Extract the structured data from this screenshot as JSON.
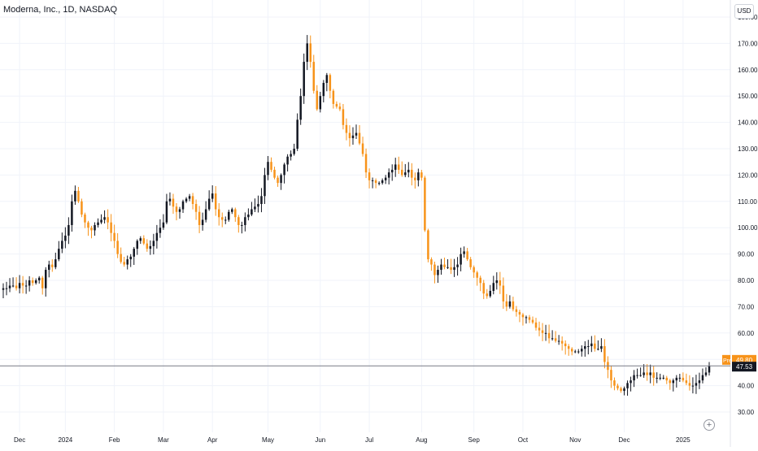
{
  "header": {
    "title": "Moderna, Inc., 1D, NASDAQ",
    "currency": "USD"
  },
  "badges": {
    "pre_label": "Pre",
    "pre_value": "49.80",
    "last_value": "47.53"
  },
  "colors": {
    "up": "#131722",
    "down": "#f7931a",
    "grid": "#f0f3fa",
    "axis_text": "#131722",
    "pre_bg": "#f7931a",
    "last_bg": "#131722",
    "price_line": "#787b86"
  },
  "icons": {
    "add": "plus-circle-icon"
  },
  "chart_data": {
    "type": "candlestick",
    "title": "Moderna, Inc., 1D, NASDAQ",
    "ylabel": "USD",
    "ylim": [
      26,
      183
    ],
    "y_ticks": [
      30,
      40,
      50,
      60,
      70,
      80,
      90,
      100,
      110,
      120,
      130,
      140,
      150,
      160,
      170,
      180
    ],
    "y_tick_labels": [
      "30.00",
      "40.00",
      "50.00",
      "60.00",
      "70.00",
      "80.00",
      "90.00",
      "100.00",
      "110.00",
      "120.00",
      "130.00",
      "140.00",
      "150.00",
      "160.00",
      "170.00",
      "180.00"
    ],
    "x_tick_labels": [
      "Dec",
      "2024",
      "Feb",
      "Mar",
      "Apr",
      "May",
      "Jun",
      "Jul",
      "Aug",
      "Sep",
      "Oct",
      "Nov",
      "Dec",
      "2025"
    ],
    "x_tick_index": [
      5,
      19,
      34,
      49,
      64,
      81,
      97,
      112,
      128,
      144,
      159,
      175,
      190,
      208
    ],
    "last_price": 47.53,
    "premarket_price": 49.8,
    "grid": true,
    "closes": [
      77,
      77,
      78,
      78,
      77,
      79,
      78,
      78,
      80,
      79,
      80,
      81,
      77,
      84,
      86,
      85,
      88,
      92,
      95,
      97,
      101,
      110,
      114,
      110,
      105,
      102,
      100,
      99,
      101,
      102,
      103,
      104,
      102,
      98,
      95,
      90,
      87,
      86,
      88,
      89,
      92,
      95,
      96,
      94,
      92,
      93,
      95,
      98,
      100,
      102,
      110,
      111,
      108,
      106,
      107,
      110,
      111,
      112,
      109,
      106,
      101,
      103,
      107,
      111,
      113,
      107,
      104,
      103,
      103,
      106,
      107,
      104,
      101,
      101,
      104,
      105,
      107,
      108,
      109,
      112,
      120,
      125,
      122,
      119,
      117,
      120,
      124,
      127,
      128,
      130,
      141,
      150,
      163,
      170,
      163,
      152,
      145,
      150,
      155,
      158,
      152,
      147,
      146,
      145,
      139,
      136,
      134,
      135,
      136,
      132,
      128,
      121,
      118,
      118,
      117,
      117,
      118,
      119,
      121,
      122,
      124,
      122,
      120,
      121,
      122,
      119,
      118,
      121,
      119,
      99,
      88,
      86,
      82,
      84,
      86,
      85,
      85,
      84,
      85,
      86,
      90,
      91,
      88,
      85,
      83,
      81,
      79,
      75,
      74,
      76,
      79,
      80,
      78,
      72,
      70,
      72,
      69,
      68,
      67,
      66,
      66,
      65,
      64,
      62,
      61,
      60,
      60,
      58,
      58,
      57,
      57,
      56,
      55,
      54,
      53,
      53,
      53,
      54,
      55,
      55,
      56,
      54,
      54,
      55,
      49,
      46,
      42,
      40,
      39,
      38,
      39,
      41,
      42,
      44,
      44,
      44,
      45,
      44,
      45,
      43,
      43,
      43,
      43,
      42,
      41,
      42,
      43,
      43,
      42,
      41,
      40,
      40,
      41,
      42,
      44,
      45,
      47.53
    ]
  }
}
